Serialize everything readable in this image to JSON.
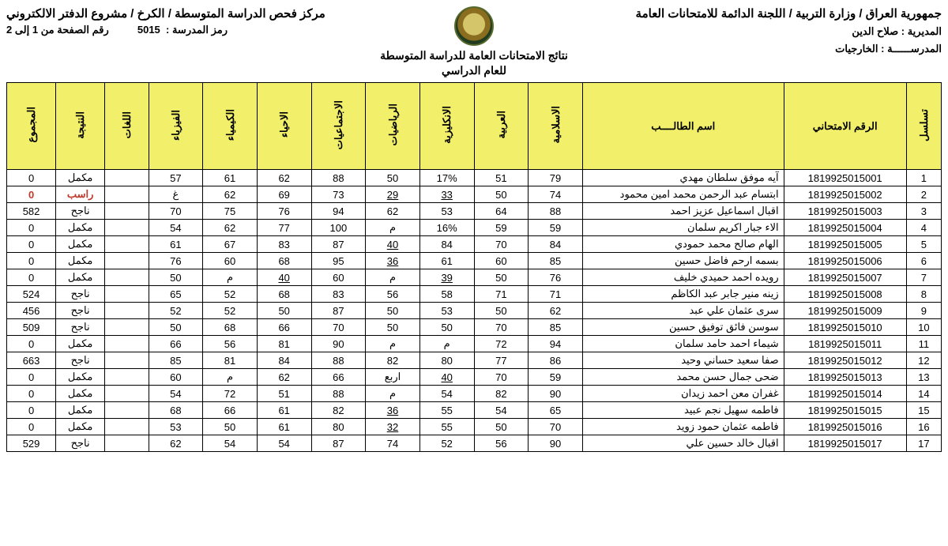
{
  "header": {
    "right_title": "جمهورية العراق / وزارة التربية / اللجنة الدائمة للامتحانات العامة",
    "directorate_label": "المديرية :",
    "directorate_value": "صلاح الدين",
    "school_label": "المدرســــــة :",
    "school_value": "الخارجيات",
    "center_title": "نتائج الامتحانات العامة للدراسة المتوسطة",
    "center_sub": "للعام الدراسي",
    "left_title": "مركز فحص الدراسة المتوسطة / الكرخ / مشروع الدفتر الالكتروني",
    "school_code_label": "رمز المدرسة :",
    "school_code": "5015",
    "page_label": "رقم الصفحة من 1 إلى 2"
  },
  "columns": {
    "seq": "تسلسل",
    "exam_no": "الرقم الامتحاني",
    "name": "اسم الطالــــب",
    "islamic": "الاسلامية",
    "arabic": "العربية",
    "english": "الانكليزية",
    "math": "الرياضيات",
    "social": "الاجتماعيات",
    "biology": "الاحياء",
    "chemistry": "الكيمياء",
    "physics": "الفيزياء",
    "languages": "اللغات",
    "result": "النتيجة",
    "total": "المجموع"
  },
  "rows": [
    {
      "seq": "1",
      "exam": "1819925015001",
      "name": "آيه موفق سلطان مهدي",
      "islamic": "79",
      "arabic": "51",
      "english": "17%",
      "math": "50",
      "social": "88",
      "biology": "62",
      "chemistry": "61",
      "physics": "57",
      "languages": "",
      "result": "مكمل",
      "total": "0"
    },
    {
      "seq": "2",
      "exam": "1819925015002",
      "name": "ابتسام عبد الرحمن محمد امين محمود",
      "islamic": "74",
      "arabic": "50",
      "english": "33",
      "math": "29",
      "social": "73",
      "biology": "69",
      "chemistry": "62",
      "physics": "غ",
      "languages": "",
      "result": "راسب",
      "total": "0",
      "fail": true,
      "u": [
        "english",
        "math"
      ]
    },
    {
      "seq": "3",
      "exam": "1819925015003",
      "name": "اقبال اسماعيل عزيز احمد",
      "islamic": "88",
      "arabic": "64",
      "english": "53",
      "math": "62",
      "social": "94",
      "biology": "76",
      "chemistry": "75",
      "physics": "70",
      "languages": "",
      "result": "ناجح",
      "total": "582"
    },
    {
      "seq": "4",
      "exam": "1819925015004",
      "name": "الاء جبار اكريم سلمان",
      "islamic": "59",
      "arabic": "59",
      "english": "16%",
      "math": "م",
      "social": "100",
      "biology": "77",
      "chemistry": "62",
      "physics": "54",
      "languages": "",
      "result": "مكمل",
      "total": "0"
    },
    {
      "seq": "5",
      "exam": "1819925015005",
      "name": "الهام صالح محمد حمودي",
      "islamic": "84",
      "arabic": "70",
      "english": "84",
      "math": "40",
      "social": "87",
      "biology": "83",
      "chemistry": "67",
      "physics": "61",
      "languages": "",
      "result": "مكمل",
      "total": "0",
      "u": [
        "math"
      ]
    },
    {
      "seq": "6",
      "exam": "1819925015006",
      "name": "بسمه ارحم فاضل حسين",
      "islamic": "85",
      "arabic": "60",
      "english": "61",
      "math": "36",
      "social": "95",
      "biology": "68",
      "chemistry": "60",
      "physics": "76",
      "languages": "",
      "result": "مكمل",
      "total": "0",
      "u": [
        "math"
      ]
    },
    {
      "seq": "7",
      "exam": "1819925015007",
      "name": "رويده احمد حميدي خليف",
      "islamic": "76",
      "arabic": "50",
      "english": "39",
      "math": "م",
      "social": "60",
      "biology": "40",
      "chemistry": "م",
      "physics": "50",
      "languages": "",
      "result": "مكمل",
      "total": "0",
      "u": [
        "english",
        "biology"
      ]
    },
    {
      "seq": "8",
      "exam": "1819925015008",
      "name": "زينه منير جابر عبد الكاظم",
      "islamic": "71",
      "arabic": "71",
      "english": "58",
      "math": "56",
      "social": "83",
      "biology": "68",
      "chemistry": "52",
      "physics": "65",
      "languages": "",
      "result": "ناجح",
      "total": "524"
    },
    {
      "seq": "9",
      "exam": "1819925015009",
      "name": "سرى عثمان علي عبد",
      "islamic": "62",
      "arabic": "50",
      "english": "53",
      "math": "50",
      "social": "87",
      "biology": "50",
      "chemistry": "52",
      "physics": "52",
      "languages": "",
      "result": "ناجح",
      "total": "456"
    },
    {
      "seq": "10",
      "exam": "1819925015010",
      "name": "سوسن فائق توفيق حسين",
      "islamic": "85",
      "arabic": "70",
      "english": "50",
      "math": "50",
      "social": "70",
      "biology": "66",
      "chemistry": "68",
      "physics": "50",
      "languages": "",
      "result": "ناجح",
      "total": "509"
    },
    {
      "seq": "11",
      "exam": "1819925015011",
      "name": "شيماء احمد حامد سلمان",
      "islamic": "94",
      "arabic": "72",
      "english": "م",
      "math": "م",
      "social": "90",
      "biology": "81",
      "chemistry": "56",
      "physics": "66",
      "languages": "",
      "result": "مكمل",
      "total": "0"
    },
    {
      "seq": "12",
      "exam": "1819925015012",
      "name": "صفا سعيد حساني وحيد",
      "islamic": "86",
      "arabic": "77",
      "english": "80",
      "math": "82",
      "social": "88",
      "biology": "84",
      "chemistry": "81",
      "physics": "85",
      "languages": "",
      "result": "ناجح",
      "total": "663"
    },
    {
      "seq": "13",
      "exam": "1819925015013",
      "name": "ضحى جمال حسن محمد",
      "islamic": "59",
      "arabic": "70",
      "english": "40",
      "math": "اربع",
      "social": "66",
      "biology": "62",
      "chemistry": "م",
      "physics": "60",
      "languages": "",
      "result": "مكمل",
      "total": "0",
      "u": [
        "english"
      ]
    },
    {
      "seq": "14",
      "exam": "1819925015014",
      "name": "غفران معن احمد زيدان",
      "islamic": "90",
      "arabic": "82",
      "english": "54",
      "math": "م",
      "social": "88",
      "biology": "51",
      "chemistry": "72",
      "physics": "54",
      "languages": "",
      "result": "مكمل",
      "total": "0"
    },
    {
      "seq": "15",
      "exam": "1819925015015",
      "name": "فاطمه سهيل نجم عبيد",
      "islamic": "65",
      "arabic": "54",
      "english": "55",
      "math": "36",
      "social": "82",
      "biology": "61",
      "chemistry": "66",
      "physics": "68",
      "languages": "",
      "result": "مكمل",
      "total": "0",
      "u": [
        "math"
      ]
    },
    {
      "seq": "16",
      "exam": "1819925015016",
      "name": "فاطمه عثمان حمود زويد",
      "islamic": "70",
      "arabic": "50",
      "english": "55",
      "math": "32",
      "social": "80",
      "biology": "61",
      "chemistry": "50",
      "physics": "53",
      "languages": "",
      "result": "مكمل",
      "total": "0",
      "u": [
        "math"
      ]
    },
    {
      "seq": "17",
      "exam": "1819925015017",
      "name": "اقبال خالد حسين علي",
      "islamic": "90",
      "arabic": "56",
      "english": "52",
      "math": "74",
      "social": "87",
      "biology": "54",
      "chemistry": "54",
      "physics": "62",
      "languages": "",
      "result": "ناجح",
      "total": "529"
    }
  ]
}
